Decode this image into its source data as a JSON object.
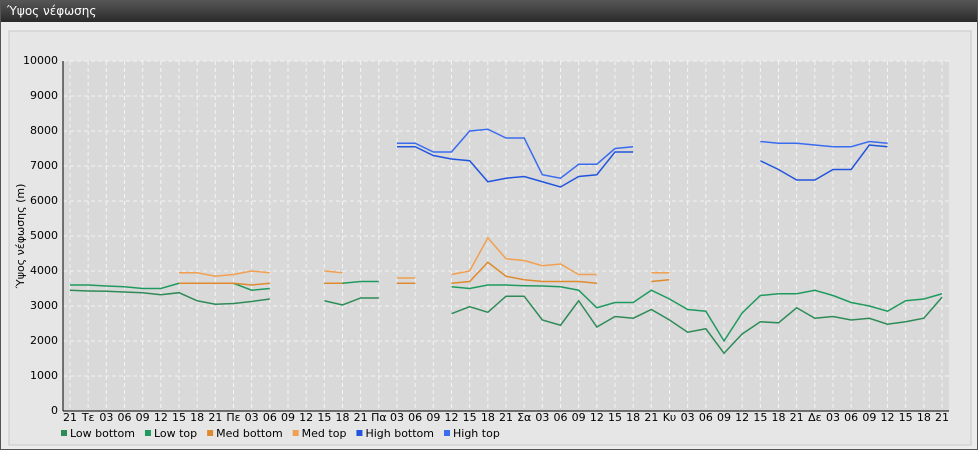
{
  "chart_data": {
    "type": "line",
    "title": "Ύψος νέφωσης",
    "y_label": "Ύψος νέφωσης (m)",
    "categories": [
      "21",
      "Τε",
      "03",
      "06",
      "09",
      "12",
      "15",
      "18",
      "21",
      "Πε",
      "03",
      "06",
      "09",
      "12",
      "15",
      "18",
      "21",
      "Πα",
      "03",
      "06",
      "09",
      "12",
      "15",
      "18",
      "21",
      "Σα",
      "03",
      "06",
      "09",
      "12",
      "15",
      "18",
      "21",
      "Κυ",
      "03",
      "06",
      "09",
      "12",
      "15",
      "18",
      "21",
      "Δε",
      "03",
      "06",
      "09",
      "12",
      "15",
      "18",
      "21"
    ],
    "ylim": [
      0,
      10000
    ],
    "yticks": [
      0,
      1000,
      2000,
      3000,
      4000,
      5000,
      6000,
      7000,
      8000,
      9000,
      10000
    ],
    "grid": true,
    "legend": "bottom",
    "series": [
      {
        "name": "Low bottom",
        "color": "#2e8b57",
        "values": [
          3450,
          3430,
          3420,
          3400,
          3380,
          3320,
          3380,
          3150,
          3050,
          3070,
          3130,
          3200,
          null,
          null,
          3150,
          3030,
          3230,
          3230,
          null,
          null,
          null,
          2780,
          2980,
          2820,
          3280,
          3280,
          2600,
          2450,
          3150,
          2400,
          2700,
          2650,
          2900,
          2600,
          2250,
          2350,
          1650,
          2200,
          2550,
          2520,
          2950,
          2650,
          2700,
          2600,
          2650,
          2480,
          2550,
          2650,
          3250
        ]
      },
      {
        "name": "Low top",
        "color": "#1f9a5e",
        "values": [
          3600,
          3600,
          3570,
          3550,
          3500,
          3500,
          3650,
          3650,
          3650,
          3650,
          3450,
          3500,
          null,
          null,
          3650,
          3650,
          3700,
          3700,
          null,
          null,
          null,
          3550,
          3500,
          3600,
          3600,
          3580,
          3570,
          3550,
          3450,
          2950,
          3100,
          3100,
          3450,
          3200,
          2900,
          2850,
          2000,
          2800,
          3300,
          3350,
          3350,
          3450,
          3300,
          3100,
          3000,
          2850,
          3150,
          3200,
          3350
        ]
      },
      {
        "name": "Med bottom",
        "color": "#e08a2e",
        "values": [
          null,
          null,
          null,
          null,
          null,
          null,
          3650,
          3650,
          3650,
          3650,
          3600,
          3650,
          null,
          null,
          3650,
          3650,
          null,
          null,
          3650,
          3650,
          null,
          3650,
          3700,
          4250,
          3850,
          3750,
          3700,
          3700,
          3700,
          3650,
          null,
          null,
          3700,
          3750,
          null,
          null,
          null,
          null,
          null,
          null,
          null,
          null,
          null,
          null,
          null,
          null,
          null,
          null,
          null
        ]
      },
      {
        "name": "Med top",
        "color": "#f0a050",
        "values": [
          null,
          null,
          null,
          null,
          null,
          null,
          3950,
          3950,
          3850,
          3900,
          4000,
          3950,
          null,
          null,
          4000,
          3950,
          null,
          null,
          3800,
          3800,
          null,
          3900,
          4000,
          4950,
          4350,
          4300,
          4150,
          4200,
          3900,
          3900,
          null,
          null,
          3950,
          3950,
          null,
          null,
          null,
          null,
          null,
          null,
          null,
          null,
          null,
          null,
          null,
          null,
          null,
          null,
          null
        ]
      },
      {
        "name": "High bottom",
        "color": "#2255dd",
        "values": [
          null,
          null,
          null,
          null,
          null,
          null,
          null,
          null,
          null,
          null,
          null,
          null,
          null,
          null,
          null,
          null,
          null,
          null,
          7550,
          7550,
          7300,
          7200,
          7150,
          6550,
          6650,
          6700,
          6550,
          6400,
          6700,
          6750,
          7400,
          7400,
          null,
          null,
          null,
          null,
          null,
          null,
          7150,
          6900,
          6600,
          6600,
          6900,
          6900,
          7600,
          7550,
          null,
          null,
          null
        ]
      },
      {
        "name": "High top",
        "color": "#3a6cf0",
        "values": [
          null,
          null,
          null,
          null,
          null,
          null,
          null,
          null,
          null,
          null,
          null,
          null,
          null,
          null,
          null,
          null,
          null,
          null,
          7650,
          7650,
          7400,
          7400,
          8000,
          8050,
          7800,
          7800,
          6750,
          6650,
          7050,
          7050,
          7500,
          7550,
          null,
          null,
          null,
          null,
          null,
          null,
          7700,
          7650,
          7650,
          7600,
          7550,
          7550,
          7700,
          7650,
          null,
          null,
          null
        ]
      }
    ]
  }
}
